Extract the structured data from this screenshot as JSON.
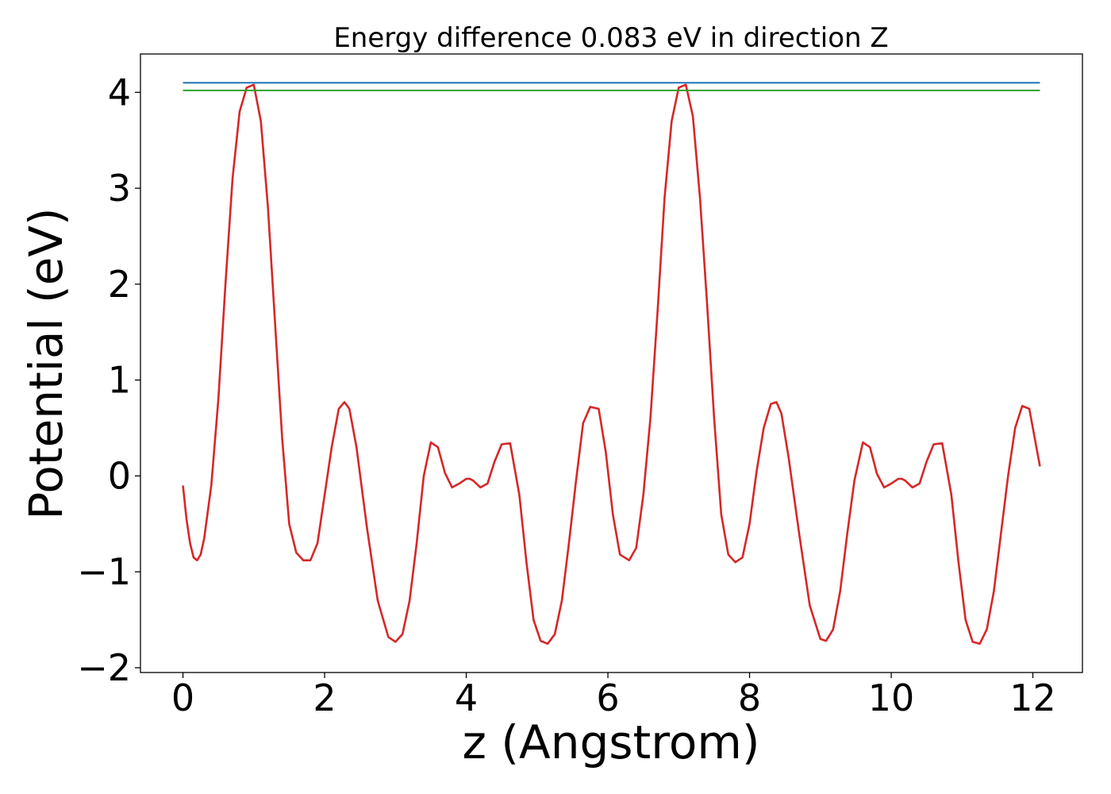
{
  "chart_data": {
    "type": "line",
    "title": "Energy difference 0.083 eV in direction Z",
    "xlabel": "z (Angstrom)",
    "ylabel": "Potential (eV)",
    "xlim": [
      -0.6,
      12.7
    ],
    "ylim": [
      -2.05,
      4.4
    ],
    "xticks": [
      0,
      2,
      4,
      6,
      8,
      10,
      12
    ],
    "xtick_labels": [
      "0",
      "2",
      "4",
      "6",
      "8",
      "10",
      "12"
    ],
    "yticks": [
      -2,
      -1,
      0,
      1,
      2,
      3,
      4
    ],
    "ytick_labels": [
      "−2",
      "−1",
      "0",
      "1",
      "2",
      "3",
      "4"
    ],
    "grid": false,
    "legend": "none",
    "series": [
      {
        "color": "#d62728",
        "x": [
          0.0,
          0.05,
          0.1,
          0.15,
          0.2,
          0.25,
          0.3,
          0.4,
          0.5,
          0.6,
          0.7,
          0.8,
          0.9,
          1.0,
          1.1,
          1.2,
          1.3,
          1.4,
          1.5,
          1.6,
          1.7,
          1.8,
          1.9,
          2.0,
          2.1,
          2.2,
          2.28,
          2.35,
          2.45,
          2.6,
          2.75,
          2.9,
          3.0,
          3.1,
          3.2,
          3.3,
          3.4,
          3.5,
          3.6,
          3.7,
          3.8,
          3.9,
          4.0,
          4.05,
          4.1,
          4.2,
          4.3,
          4.4,
          4.5,
          4.62,
          4.75,
          4.85,
          4.95,
          5.05,
          5.15,
          5.25,
          5.35,
          5.45,
          5.55,
          5.65,
          5.75,
          5.87,
          5.97,
          6.07,
          6.17,
          6.3,
          6.4,
          6.5,
          6.6,
          6.7,
          6.8,
          6.9,
          7.0,
          7.1,
          7.2,
          7.3,
          7.4,
          7.5,
          7.6,
          7.7,
          7.8,
          7.9,
          8.0,
          8.1,
          8.2,
          8.3,
          8.38,
          8.45,
          8.55,
          8.7,
          8.85,
          9.0,
          9.08,
          9.18,
          9.28,
          9.38,
          9.48,
          9.6,
          9.7,
          9.8,
          9.9,
          10.0,
          10.1,
          10.15,
          10.2,
          10.3,
          10.4,
          10.5,
          10.6,
          10.72,
          10.85,
          10.95,
          11.05,
          11.15,
          11.25,
          11.35,
          11.45,
          11.55,
          11.65,
          11.75,
          11.85,
          11.95,
          12.05,
          12.1
        ],
        "values": [
          -0.1,
          -0.45,
          -0.7,
          -0.85,
          -0.88,
          -0.82,
          -0.65,
          -0.1,
          0.8,
          2.0,
          3.1,
          3.8,
          4.05,
          4.08,
          3.7,
          2.8,
          1.6,
          0.4,
          -0.5,
          -0.8,
          -0.88,
          -0.88,
          -0.7,
          -0.2,
          0.3,
          0.7,
          0.77,
          0.7,
          0.3,
          -0.55,
          -1.3,
          -1.68,
          -1.73,
          -1.65,
          -1.3,
          -0.7,
          0.0,
          0.35,
          0.3,
          0.03,
          -0.12,
          -0.08,
          -0.03,
          -0.03,
          -0.05,
          -0.12,
          -0.08,
          0.15,
          0.33,
          0.34,
          -0.2,
          -0.9,
          -1.5,
          -1.72,
          -1.75,
          -1.65,
          -1.3,
          -0.7,
          -0.05,
          0.55,
          0.72,
          0.7,
          0.25,
          -0.4,
          -0.82,
          -0.88,
          -0.75,
          -0.2,
          0.6,
          1.7,
          2.9,
          3.7,
          4.05,
          4.08,
          3.75,
          2.9,
          1.8,
          0.6,
          -0.4,
          -0.82,
          -0.9,
          -0.85,
          -0.5,
          0.05,
          0.5,
          0.75,
          0.77,
          0.65,
          0.2,
          -0.6,
          -1.35,
          -1.7,
          -1.72,
          -1.6,
          -1.2,
          -0.6,
          -0.05,
          0.35,
          0.3,
          0.02,
          -0.12,
          -0.08,
          -0.03,
          -0.03,
          -0.05,
          -0.12,
          -0.08,
          0.15,
          0.33,
          0.34,
          -0.2,
          -0.9,
          -1.5,
          -1.73,
          -1.75,
          -1.6,
          -1.2,
          -0.6,
          0.0,
          0.5,
          0.73,
          0.7,
          0.3,
          0.1
        ]
      },
      {
        "color": "#1f77b4",
        "x": [
          0.0,
          12.1
        ],
        "values": [
          4.1,
          4.1
        ]
      },
      {
        "color": "#2ca02c",
        "x": [
          0.0,
          12.1
        ],
        "values": [
          4.02,
          4.02
        ]
      }
    ]
  }
}
